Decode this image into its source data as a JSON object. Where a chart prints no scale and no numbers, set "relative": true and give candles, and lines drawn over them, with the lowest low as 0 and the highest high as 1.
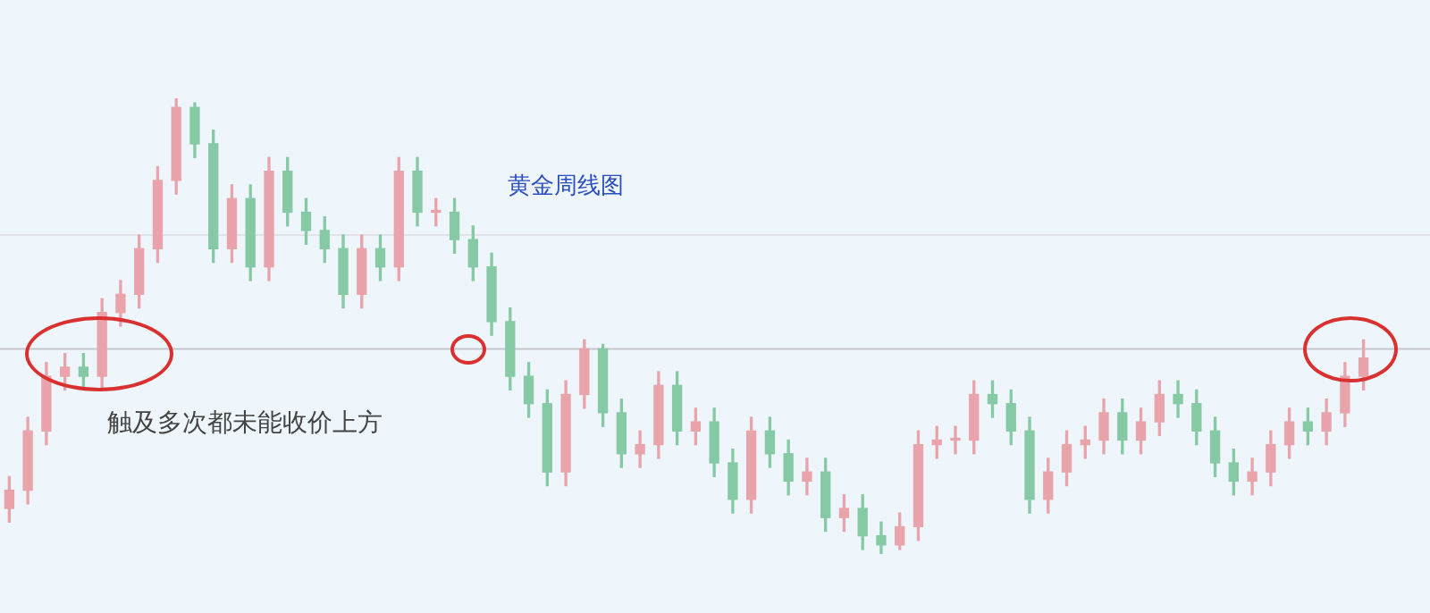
{
  "chart_data": {
    "type": "candlestick",
    "relative": true,
    "title": "黄金周线图",
    "annotations": [
      "触及多次都未能收价上方"
    ],
    "categories": [
      null,
      null,
      null,
      null,
      null,
      null,
      null,
      null,
      null,
      null,
      null,
      null,
      null,
      null,
      null,
      null,
      null,
      null,
      null,
      null,
      null,
      null,
      null,
      null,
      null,
      null,
      null,
      null,
      null,
      null,
      null,
      null,
      null,
      null,
      null,
      null,
      null,
      null,
      null,
      null,
      null,
      null,
      null,
      null,
      null,
      null,
      null,
      null,
      null,
      null,
      null,
      null,
      null,
      null,
      null,
      null,
      null,
      null,
      null,
      null,
      null,
      null,
      null,
      null,
      null,
      null,
      null,
      null,
      null,
      null,
      null,
      null,
      null,
      null
    ],
    "ohlc": [
      [
        0.1,
        0.17,
        0.07,
        0.14
      ],
      [
        0.14,
        0.3,
        0.11,
        0.27
      ],
      [
        0.27,
        0.42,
        0.24,
        0.39
      ],
      [
        0.39,
        0.44,
        0.36,
        0.41
      ],
      [
        0.41,
        0.44,
        0.36,
        0.39
      ],
      [
        0.39,
        0.56,
        0.36,
        0.53
      ],
      [
        0.53,
        0.6,
        0.5,
        0.57
      ],
      [
        0.57,
        0.7,
        0.54,
        0.67
      ],
      [
        0.67,
        0.85,
        0.64,
        0.82
      ],
      [
        0.82,
        1,
        0.79,
        0.98
      ],
      [
        0.98,
        0.99,
        0.87,
        0.9
      ],
      [
        0.9,
        0.93,
        0.64,
        0.67
      ],
      [
        0.67,
        0.81,
        0.64,
        0.78
      ],
      [
        0.78,
        0.81,
        0.6,
        0.63
      ],
      [
        0.63,
        0.87,
        0.6,
        0.84
      ],
      [
        0.84,
        0.87,
        0.72,
        0.75
      ],
      [
        0.75,
        0.78,
        0.68,
        0.71
      ],
      [
        0.71,
        0.74,
        0.64,
        0.67
      ],
      [
        0.67,
        0.7,
        0.54,
        0.57
      ],
      [
        0.57,
        0.7,
        0.54,
        0.67
      ],
      [
        0.67,
        0.7,
        0.6,
        0.63
      ],
      [
        0.63,
        0.87,
        0.6,
        0.84
      ],
      [
        0.84,
        0.87,
        0.72,
        0.75
      ],
      [
        0.75,
        0.78,
        0.72,
        0.75
      ],
      [
        0.75,
        0.78,
        0.66,
        0.69
      ],
      [
        0.69,
        0.72,
        0.6,
        0.63
      ],
      [
        0.63,
        0.66,
        0.48,
        0.51
      ],
      [
        0.51,
        0.54,
        0.36,
        0.39
      ],
      [
        0.39,
        0.42,
        0.3,
        0.33
      ],
      [
        0.33,
        0.36,
        0.15,
        0.18
      ],
      [
        0.18,
        0.38,
        0.15,
        0.35
      ],
      [
        0.35,
        0.47,
        0.32,
        0.45
      ],
      [
        0.45,
        0.46,
        0.28,
        0.31
      ],
      [
        0.31,
        0.34,
        0.19,
        0.22
      ],
      [
        0.22,
        0.27,
        0.19,
        0.24
      ],
      [
        0.24,
        0.4,
        0.21,
        0.37
      ],
      [
        0.37,
        0.4,
        0.24,
        0.27
      ],
      [
        0.27,
        0.32,
        0.24,
        0.29
      ],
      [
        0.29,
        0.32,
        0.17,
        0.2
      ],
      [
        0.2,
        0.23,
        0.09,
        0.12
      ],
      [
        0.12,
        0.3,
        0.09,
        0.27
      ],
      [
        0.27,
        0.3,
        0.19,
        0.22
      ],
      [
        0.22,
        0.25,
        0.13,
        0.16
      ],
      [
        0.16,
        0.21,
        0.13,
        0.18
      ],
      [
        0.18,
        0.21,
        0.05,
        0.08
      ],
      [
        0.08,
        0.13,
        0.05,
        0.1
      ],
      [
        0.1,
        0.13,
        0.01,
        0.04
      ],
      [
        0.04,
        0.07,
        0,
        0.02
      ],
      [
        0.02,
        0.09,
        0.01,
        0.06
      ],
      [
        0.06,
        0.27,
        0.03,
        0.24
      ],
      [
        0.24,
        0.28,
        0.21,
        0.25
      ],
      [
        0.25,
        0.28,
        0.22,
        0.25
      ],
      [
        0.25,
        0.38,
        0.22,
        0.35
      ],
      [
        0.35,
        0.38,
        0.3,
        0.33
      ],
      [
        0.33,
        0.36,
        0.24,
        0.27
      ],
      [
        0.27,
        0.3,
        0.09,
        0.12
      ],
      [
        0.12,
        0.21,
        0.09,
        0.18
      ],
      [
        0.18,
        0.27,
        0.15,
        0.24
      ],
      [
        0.24,
        0.28,
        0.21,
        0.25
      ],
      [
        0.25,
        0.34,
        0.22,
        0.31
      ],
      [
        0.31,
        0.34,
        0.22,
        0.25
      ],
      [
        0.25,
        0.32,
        0.22,
        0.29
      ],
      [
        0.29,
        0.38,
        0.26,
        0.35
      ],
      [
        0.35,
        0.38,
        0.3,
        0.33
      ],
      [
        0.33,
        0.36,
        0.24,
        0.27
      ],
      [
        0.27,
        0.3,
        0.17,
        0.2
      ],
      [
        0.2,
        0.23,
        0.13,
        0.16
      ],
      [
        0.16,
        0.21,
        0.13,
        0.18
      ],
      [
        0.18,
        0.27,
        0.15,
        0.24
      ],
      [
        0.24,
        0.32,
        0.21,
        0.29
      ],
      [
        0.29,
        0.32,
        0.24,
        0.27
      ],
      [
        0.27,
        0.34,
        0.24,
        0.31
      ],
      [
        0.31,
        0.42,
        0.28,
        0.39
      ],
      [
        0.39,
        0.47,
        0.36,
        0.43
      ]
    ],
    "colors": [
      "#e8a3ab",
      "#e8a3ab",
      "#e8a3ab",
      "#e8a3ab",
      "#86c9a5",
      "#e8a3ab",
      "#e8a3ab",
      "#e8a3ab",
      "#e8a3ab",
      "#e8a3ab",
      "#86c9a5",
      "#86c9a5",
      "#e8a3ab",
      "#86c9a5",
      "#e8a3ab",
      "#86c9a5",
      "#86c9a5",
      "#86c9a5",
      "#86c9a5",
      "#e8a3ab",
      "#86c9a5",
      "#e8a3ab",
      "#86c9a5",
      "#e8a3ab",
      "#86c9a5",
      "#86c9a5",
      "#86c9a5",
      "#86c9a5",
      "#86c9a5",
      "#86c9a5",
      "#e8a3ab",
      "#e8a3ab",
      "#86c9a5",
      "#86c9a5",
      "#e8a3ab",
      "#e8a3ab",
      "#86c9a5",
      "#e8a3ab",
      "#86c9a5",
      "#86c9a5",
      "#e8a3ab",
      "#86c9a5",
      "#86c9a5",
      "#e8a3ab",
      "#86c9a5",
      "#e8a3ab",
      "#86c9a5",
      "#86c9a5",
      "#e8a3ab",
      "#e8a3ab",
      "#e8a3ab",
      "#e8a3ab",
      "#e8a3ab",
      "#86c9a5",
      "#86c9a5",
      "#86c9a5",
      "#e8a3ab",
      "#e8a3ab",
      "#e8a3ab",
      "#e8a3ab",
      "#86c9a5",
      "#e8a3ab",
      "#e8a3ab",
      "#86c9a5",
      "#86c9a5",
      "#86c9a5",
      "#86c9a5",
      "#e8a3ab",
      "#e8a3ab",
      "#e8a3ab",
      "#86c9a5",
      "#e8a3ab",
      "#e8a3ab",
      "#e8a3ab"
    ],
    "ref_lines": [
      {
        "axis": "y",
        "value": 0.45,
        "label": null,
        "color": "#c4c8cc"
      },
      {
        "axis": "y",
        "value": 0.7,
        "label": null,
        "color": "#e0e4e8"
      }
    ],
    "legend": false
  }
}
